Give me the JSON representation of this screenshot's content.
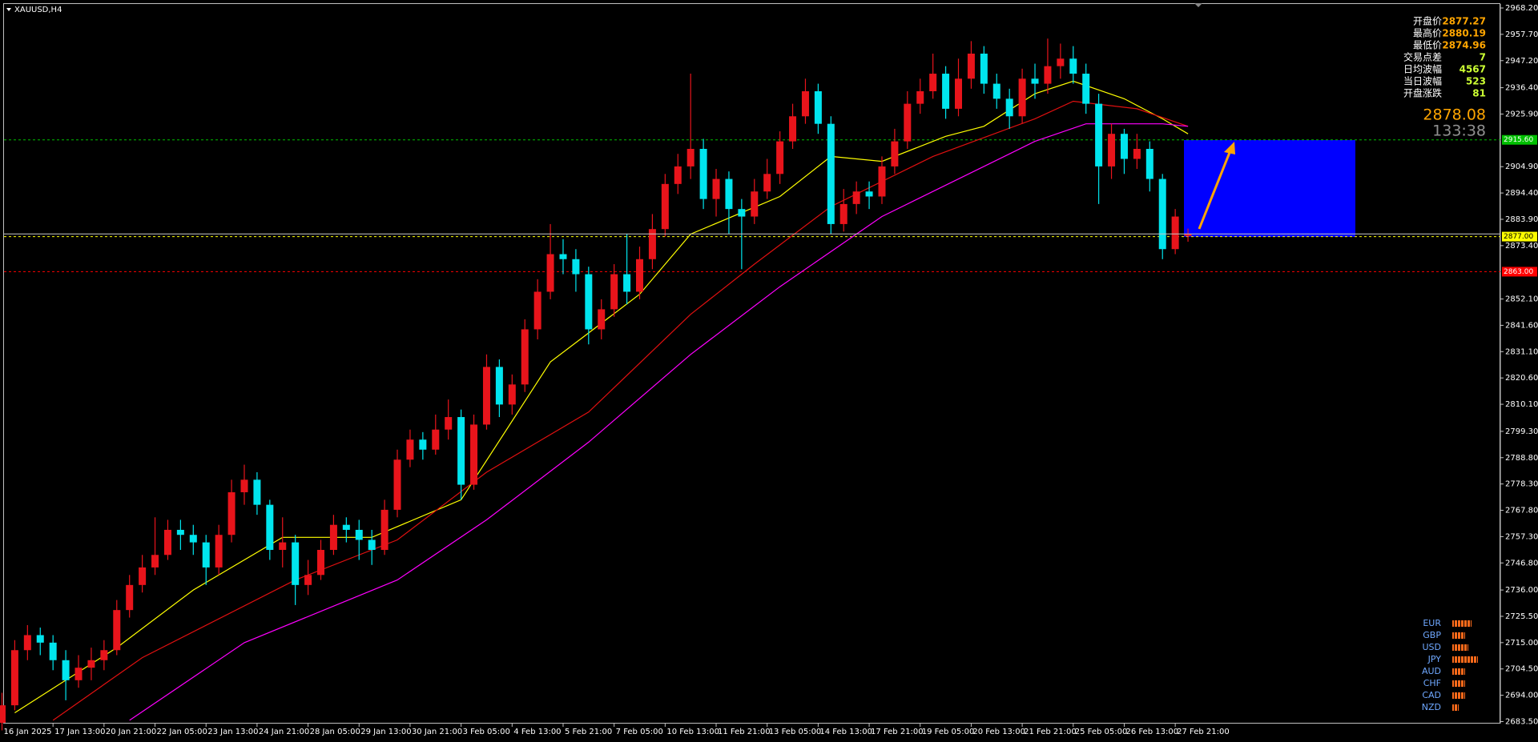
{
  "chart_data": {
    "type": "candlestick",
    "title": "XAUUSD,H4",
    "ylim": [
      2682.7,
      2969.8
    ],
    "yticks": [
      {
        "value": 2968.2,
        "label": "2968.20"
      },
      {
        "value": 2957.7,
        "label": "2957.70"
      },
      {
        "value": 2947.2,
        "label": "2947.20"
      },
      {
        "value": 2936.4,
        "label": "2936.40"
      },
      {
        "value": 2925.9,
        "label": "2925.90"
      },
      {
        "value": 2904.9,
        "label": "2904.90"
      },
      {
        "value": 2894.4,
        "label": "2894.40"
      },
      {
        "value": 2883.9,
        "label": "2883.90"
      },
      {
        "value": 2873.4,
        "label": "2873.40"
      },
      {
        "value": 2852.1,
        "label": "2852.10"
      },
      {
        "value": 2841.6,
        "label": "2841.60"
      },
      {
        "value": 2831.1,
        "label": "2831.10"
      },
      {
        "value": 2820.6,
        "label": "2820.60"
      },
      {
        "value": 2810.1,
        "label": "2810.10"
      },
      {
        "value": 2799.3,
        "label": "2799.30"
      },
      {
        "value": 2788.8,
        "label": "2788.80"
      },
      {
        "value": 2778.3,
        "label": "2778.30"
      },
      {
        "value": 2767.8,
        "label": "2767.80"
      },
      {
        "value": 2757.3,
        "label": "2757.30"
      },
      {
        "value": 2746.8,
        "label": "2746.80"
      },
      {
        "value": 2736,
        "label": "2736.00"
      },
      {
        "value": 2725.5,
        "label": "2725.50"
      },
      {
        "value": 2715,
        "label": "2715.00"
      },
      {
        "value": 2704.5,
        "label": "2704.50"
      },
      {
        "value": 2694,
        "label": "2694.00"
      },
      {
        "value": 2683.5,
        "label": "2683.50"
      }
    ],
    "xticks": [
      {
        "value": 0,
        "label": "16 Jan 2025"
      },
      {
        "value": 4,
        "label": "17 Jan 13:00"
      },
      {
        "value": 8,
        "label": "20 Jan 21:00"
      },
      {
        "value": 12,
        "label": "22 Jan 05:00"
      },
      {
        "value": 16,
        "label": "23 Jan 13:00"
      },
      {
        "value": 20,
        "label": "24 Jan 21:00"
      },
      {
        "value": 24,
        "label": "28 Jan 05:00"
      },
      {
        "value": 28,
        "label": "29 Jan 13:00"
      },
      {
        "value": 32,
        "label": "30 Jan 21:00"
      },
      {
        "value": 36,
        "label": "3 Feb 05:00"
      },
      {
        "value": 40,
        "label": "4 Feb 13:00"
      },
      {
        "value": 44,
        "label": "5 Feb 21:00"
      },
      {
        "value": 48,
        "label": "7 Feb 05:00"
      },
      {
        "value": 52,
        "label": "10 Feb 13:00"
      },
      {
        "value": 56,
        "label": "11 Feb 21:00"
      },
      {
        "value": 60,
        "label": "13 Feb 05:00"
      },
      {
        "value": 64,
        "label": "14 Feb 13:00"
      },
      {
        "value": 68,
        "label": "17 Feb 21:00"
      },
      {
        "value": 72,
        "label": "19 Feb 05:00"
      },
      {
        "value": 76,
        "label": "20 Feb 13:00"
      },
      {
        "value": 80,
        "label": "21 Feb 21:00"
      },
      {
        "value": 84,
        "label": "25 Feb 05:00"
      },
      {
        "value": 88,
        "label": "26 Feb 13:00"
      },
      {
        "value": 92,
        "label": "27 Feb 21:00"
      }
    ],
    "up_color": "#e8141b",
    "down_color": "#00e5ee",
    "candles": {
      "open": [
        2683,
        2690,
        2712,
        2718,
        2715,
        2708,
        2700,
        2705,
        2708,
        2712,
        2728,
        2738,
        2745,
        2750,
        2760,
        2758,
        2755,
        2745,
        2758,
        2775,
        2780,
        2770,
        2752,
        2755,
        2738,
        2742,
        2752,
        2762,
        2760,
        2756,
        2752,
        2768,
        2788,
        2796,
        2792,
        2800,
        2805,
        2778,
        2802,
        2825,
        2810,
        2818,
        2840,
        2855,
        2870,
        2868,
        2862,
        2840,
        2848,
        2862,
        2855,
        2868,
        2880,
        2898,
        2905,
        2912,
        2892,
        2900,
        2888,
        2885,
        2895,
        2902,
        2915,
        2925,
        2935,
        2922,
        2882,
        2890,
        2895,
        2893,
        2905,
        2915,
        2930,
        2935,
        2942,
        2928,
        2940,
        2950,
        2938,
        2932,
        2925,
        2940,
        2938,
        2945,
        2948,
        2942,
        2930,
        2905,
        2918,
        2908,
        2912,
        2900,
        2872,
        2877.27
      ],
      "high": [
        2695,
        2716,
        2722,
        2721,
        2718,
        2712,
        2710,
        2713,
        2716,
        2732,
        2742,
        2750,
        2765,
        2764,
        2764,
        2762,
        2758,
        2762,
        2780,
        2786,
        2783,
        2772,
        2765,
        2758,
        2748,
        2756,
        2766,
        2765,
        2764,
        2760,
        2772,
        2792,
        2800,
        2799,
        2806,
        2812,
        2808,
        2806,
        2830,
        2828,
        2822,
        2844,
        2860,
        2882,
        2876,
        2872,
        2865,
        2852,
        2866,
        2878,
        2873,
        2886,
        2902,
        2910,
        2942,
        2916,
        2904,
        2903,
        2892,
        2900,
        2908,
        2919,
        2930,
        2940,
        2938,
        2925,
        2896,
        2899,
        2899,
        2909,
        2920,
        2935,
        2940,
        2950,
        2945,
        2948,
        2955,
        2953,
        2942,
        2936,
        2944,
        2946,
        2956,
        2954,
        2953,
        2946,
        2934,
        2922,
        2920,
        2918,
        2915,
        2902,
        2888,
        2880.19
      ],
      "low": [
        2680,
        2688,
        2708,
        2710,
        2704,
        2692,
        2697,
        2700,
        2704,
        2710,
        2725,
        2735,
        2742,
        2748,
        2752,
        2750,
        2738,
        2742,
        2755,
        2770,
        2766,
        2748,
        2745,
        2730,
        2734,
        2740,
        2750,
        2755,
        2748,
        2746,
        2750,
        2765,
        2785,
        2788,
        2790,
        2796,
        2772,
        2776,
        2800,
        2805,
        2806,
        2815,
        2836,
        2852,
        2862,
        2855,
        2834,
        2836,
        2845,
        2850,
        2852,
        2864,
        2877,
        2894,
        2900,
        2888,
        2885,
        2878,
        2864,
        2882,
        2892,
        2898,
        2912,
        2922,
        2918,
        2878,
        2879,
        2886,
        2888,
        2890,
        2902,
        2912,
        2926,
        2932,
        2924,
        2925,
        2936,
        2934,
        2928,
        2920,
        2922,
        2932,
        2934,
        2940,
        2938,
        2926,
        2890,
        2900,
        2902,
        2904,
        2895,
        2868,
        2870,
        2874.96
      ],
      "close": [
        2690,
        2712,
        2718,
        2715,
        2708,
        2700,
        2705,
        2708,
        2712,
        2728,
        2738,
        2745,
        2750,
        2760,
        2758,
        2755,
        2745,
        2758,
        2775,
        2780,
        2770,
        2752,
        2755,
        2738,
        2742,
        2752,
        2762,
        2760,
        2756,
        2752,
        2768,
        2788,
        2796,
        2792,
        2800,
        2805,
        2778,
        2802,
        2825,
        2810,
        2818,
        2840,
        2855,
        2870,
        2868,
        2862,
        2840,
        2848,
        2862,
        2855,
        2868,
        2880,
        2898,
        2905,
        2912,
        2892,
        2900,
        2888,
        2885,
        2895,
        2902,
        2915,
        2925,
        2935,
        2922,
        2882,
        2890,
        2895,
        2893,
        2905,
        2915,
        2930,
        2935,
        2942,
        2928,
        2940,
        2950,
        2938,
        2932,
        2925,
        2940,
        2938,
        2945,
        2948,
        2942,
        2930,
        2905,
        2918,
        2908,
        2912,
        2900,
        2872,
        2885,
        2878.08
      ]
    },
    "moving_averages": [
      {
        "color": "#ffff00",
        "x": [
          1,
          9,
          15,
          22,
          29,
          36,
          43,
          50,
          54,
          61,
          65,
          69,
          74,
          77,
          81,
          84,
          88,
          91,
          93
        ],
        "values": [
          2687,
          2713,
          2736,
          2757,
          2757,
          2772,
          2827,
          2854,
          2878,
          2893,
          2909,
          2907,
          2917,
          2921,
          2934,
          2939,
          2932,
          2924,
          2918
        ]
      },
      {
        "color": "#e01010",
        "x": [
          4,
          11,
          23,
          31,
          38,
          46,
          54,
          59,
          65,
          73,
          81,
          84,
          89,
          93
        ],
        "values": [
          2684,
          2709,
          2740,
          2756,
          2783,
          2807,
          2846,
          2866,
          2889,
          2909,
          2924,
          2931,
          2928,
          2921
        ]
      },
      {
        "color": "#ff00ff",
        "x": [
          10,
          19,
          31,
          38,
          46,
          54,
          61,
          69,
          77,
          81,
          85,
          91,
          93
        ],
        "values": [
          2684,
          2715,
          2740,
          2764,
          2795,
          2830,
          2857,
          2885,
          2905,
          2915,
          2922,
          2922,
          2921
        ]
      }
    ],
    "levels": [
      {
        "value": 2915.6,
        "label": "2915.60",
        "color": "#00c000",
        "text_color": "#ffffff"
      },
      {
        "value": 2877,
        "label": "2877.00",
        "color": "#ffff00",
        "text_color": "#000000"
      },
      {
        "value": 2863,
        "label": "2863.00",
        "color": "#ff0000",
        "text_color": "#ffffff"
      }
    ],
    "info": [
      {
        "label": "开盘价",
        "value": 2877.27,
        "color": "#ffa500"
      },
      {
        "label": "最高价",
        "value": 2880.19,
        "color": "#ffa500"
      },
      {
        "label": "最低价",
        "value": 2874.96,
        "color": "#ffa500"
      },
      {
        "label": "交易点差",
        "value": 7,
        "color": "#ccff33"
      },
      {
        "label": "日均波幅",
        "value": 4567,
        "color": "#ccff33"
      },
      {
        "label": "当日波幅",
        "value": 523,
        "color": "#ccff33"
      },
      {
        "label": "开盘涨跌",
        "value": 81,
        "color": "#ccff33"
      }
    ],
    "price": 2878.08,
    "timer": "133:38",
    "strength": [
      {
        "name": "EUR",
        "value": 6
      },
      {
        "name": "GBP",
        "value": 4
      },
      {
        "name": "USD",
        "value": 5
      },
      {
        "name": "JPY",
        "value": 8
      },
      {
        "name": "AUD",
        "value": 4
      },
      {
        "name": "CHF",
        "value": 4
      },
      {
        "name": "CAD",
        "value": 4
      },
      {
        "name": "NZD",
        "value": 2
      }
    ]
  }
}
